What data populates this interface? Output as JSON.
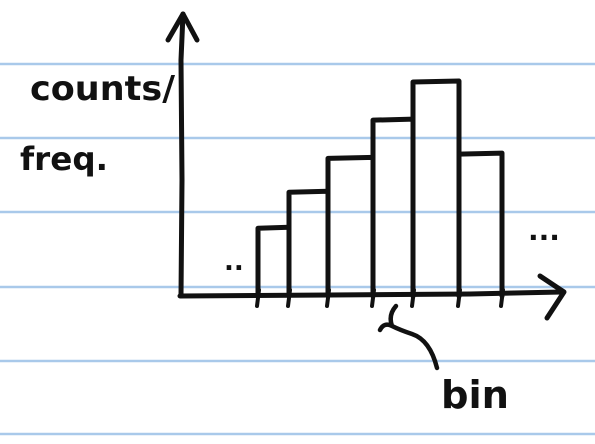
{
  "colors": {
    "background": "#ffffff",
    "ruled_line": "#a9c9ea",
    "ink": "#111111"
  },
  "labels": {
    "y_axis_line1": "counts/",
    "y_axis_line2": "freq.",
    "x_pointer": "bin",
    "left_ellipsis": "..",
    "right_ellipsis": "..."
  },
  "histogram": {
    "bin_count": 6,
    "relative_heights": [
      0.31,
      0.48,
      0.64,
      0.82,
      1.0,
      0.66
    ]
  }
}
